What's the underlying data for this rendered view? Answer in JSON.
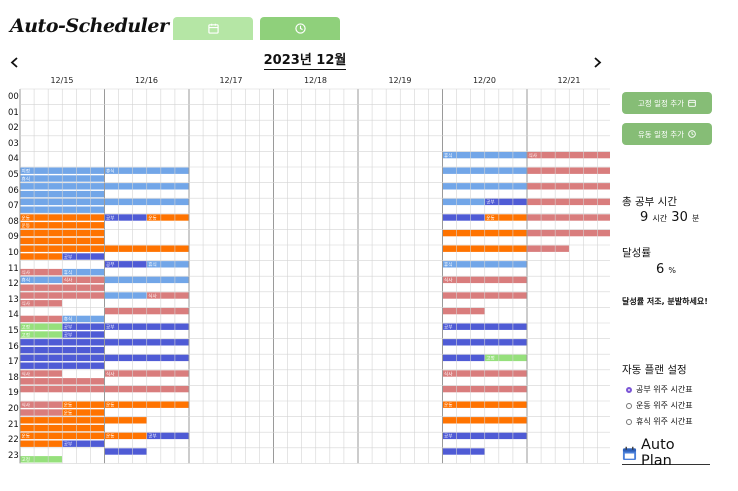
{
  "app": {
    "title": "Auto-Scheduler"
  },
  "view_tabs": [
    {
      "icon": "calendar-icon"
    },
    {
      "icon": "clock-icon"
    }
  ],
  "calendar": {
    "month_label": "2023년 12월",
    "days": [
      "12/15",
      "12/16",
      "12/17",
      "12/18",
      "12/19",
      "12/20",
      "12/21"
    ],
    "hours": [
      "00",
      "01",
      "02",
      "03",
      "04",
      "05",
      "06",
      "07",
      "08",
      "09",
      "10",
      "11",
      "12",
      "13",
      "14",
      "15",
      "16",
      "17",
      "18",
      "19",
      "20",
      "21",
      "22",
      "23"
    ],
    "colors": {
      "study": "#4f5bd5",
      "rest": "#72a6e8",
      "meal": "#d97d7d",
      "exercise": "#ff7300",
      "fixed": "#96e07c"
    },
    "events": [
      {
        "d": 0,
        "h": 5,
        "c": "rest",
        "r": 0,
        "s": 0,
        "e": 6,
        "t": "지정"
      },
      {
        "d": 0,
        "h": 5,
        "c": "rest",
        "r": 1,
        "s": 0,
        "e": 6,
        "t": "휴식"
      },
      {
        "d": 0,
        "h": 6,
        "c": "rest",
        "r": 0,
        "s": 0,
        "e": 6
      },
      {
        "d": 0,
        "h": 6,
        "c": "rest",
        "r": 1,
        "s": 0,
        "e": 6
      },
      {
        "d": 0,
        "h": 7,
        "c": "rest",
        "r": 0,
        "s": 0,
        "e": 6
      },
      {
        "d": 0,
        "h": 7,
        "c": "rest",
        "r": 1,
        "s": 0,
        "e": 6
      },
      {
        "d": 0,
        "h": 8,
        "c": "exercise",
        "r": 0,
        "s": 0,
        "e": 6,
        "t": "운동"
      },
      {
        "d": 0,
        "h": 8,
        "c": "exercise",
        "r": 1,
        "s": 0,
        "e": 6,
        "t": "운동"
      },
      {
        "d": 0,
        "h": 9,
        "c": "exercise",
        "r": 0,
        "s": 0,
        "e": 6
      },
      {
        "d": 0,
        "h": 9,
        "c": "exercise",
        "r": 1,
        "s": 0,
        "e": 6
      },
      {
        "d": 0,
        "h": 10,
        "c": "exercise",
        "r": 0,
        "s": 0,
        "e": 6
      },
      {
        "d": 0,
        "h": 10,
        "c": "study",
        "r": 1,
        "s": 3,
        "e": 6,
        "t": "공부"
      },
      {
        "d": 0,
        "h": 10,
        "c": "exercise",
        "r": 1,
        "s": 0,
        "e": 3
      },
      {
        "d": 0,
        "h": 11,
        "c": "meal",
        "r": 1,
        "s": 0,
        "e": 3,
        "t": "식사"
      },
      {
        "d": 0,
        "h": 11,
        "c": "rest",
        "r": 1,
        "s": 3,
        "e": 6,
        "t": "휴식"
      },
      {
        "d": 0,
        "h": 12,
        "c": "rest",
        "r": 0,
        "s": 0,
        "e": 3,
        "t": "휴식"
      },
      {
        "d": 0,
        "h": 12,
        "c": "meal",
        "r": 0,
        "s": 3,
        "e": 6,
        "t": "식사"
      },
      {
        "d": 0,
        "h": 12,
        "c": "meal",
        "r": 1,
        "s": 0,
        "e": 6
      },
      {
        "d": 0,
        "h": 13,
        "c": "meal",
        "r": 0,
        "s": 0,
        "e": 6
      },
      {
        "d": 0,
        "h": 13,
        "c": "meal",
        "r": 1,
        "s": 0,
        "e": 3,
        "t": "식사"
      },
      {
        "d": 0,
        "h": 14,
        "c": "meal",
        "r": 1,
        "s": 0,
        "e": 3
      },
      {
        "d": 0,
        "h": 14,
        "c": "rest",
        "r": 1,
        "s": 3,
        "e": 6,
        "t": "휴식"
      },
      {
        "d": 0,
        "h": 15,
        "c": "fixed",
        "r": 0,
        "s": 0,
        "e": 3,
        "t": "고정"
      },
      {
        "d": 0,
        "h": 15,
        "c": "study",
        "r": 0,
        "s": 3,
        "e": 6,
        "t": "공부"
      },
      {
        "d": 0,
        "h": 15,
        "c": "fixed",
        "r": 1,
        "s": 0,
        "e": 3,
        "t": "고정"
      },
      {
        "d": 0,
        "h": 15,
        "c": "study",
        "r": 1,
        "s": 3,
        "e": 6,
        "t": "공부"
      },
      {
        "d": 0,
        "h": 16,
        "c": "study",
        "r": 0,
        "s": 0,
        "e": 6
      },
      {
        "d": 0,
        "h": 16,
        "c": "study",
        "r": 1,
        "s": 0,
        "e": 6
      },
      {
        "d": 0,
        "h": 17,
        "c": "study",
        "r": 0,
        "s": 0,
        "e": 6
      },
      {
        "d": 0,
        "h": 17,
        "c": "study",
        "r": 1,
        "s": 0,
        "e": 6
      },
      {
        "d": 0,
        "h": 18,
        "c": "meal",
        "r": 0,
        "s": 0,
        "e": 3,
        "t": "식사"
      },
      {
        "d": 0,
        "h": 18,
        "c": "meal",
        "r": 1,
        "s": 0,
        "e": 6
      },
      {
        "d": 0,
        "h": 19,
        "c": "meal",
        "r": 0,
        "s": 0,
        "e": 6
      },
      {
        "d": 0,
        "h": 20,
        "c": "meal",
        "r": 0,
        "s": 0,
        "e": 3,
        "t": "식사"
      },
      {
        "d": 0,
        "h": 20,
        "c": "exercise",
        "r": 0,
        "s": 3,
        "e": 6,
        "t": "운동"
      },
      {
        "d": 0,
        "h": 20,
        "c": "meal",
        "r": 1,
        "s": 0,
        "e": 3
      },
      {
        "d": 0,
        "h": 20,
        "c": "exercise",
        "r": 1,
        "s": 3,
        "e": 6,
        "t": "운동"
      },
      {
        "d": 0,
        "h": 21,
        "c": "exercise",
        "r": 0,
        "s": 0,
        "e": 6
      },
      {
        "d": 0,
        "h": 21,
        "c": "exercise",
        "r": 1,
        "s": 0,
        "e": 6
      },
      {
        "d": 0,
        "h": 22,
        "c": "exercise",
        "r": 0,
        "s": 0,
        "e": 6,
        "t": "운동"
      },
      {
        "d": 0,
        "h": 22,
        "c": "study",
        "r": 1,
        "s": 3,
        "e": 6,
        "t": "공부"
      },
      {
        "d": 0,
        "h": 22,
        "c": "exercise",
        "r": 1,
        "s": 0,
        "e": 3
      },
      {
        "d": 0,
        "h": 23,
        "c": "fixed",
        "r": 1,
        "s": 0,
        "e": 3,
        "t": "고정"
      },
      {
        "d": 1,
        "h": 5,
        "c": "rest",
        "r": 0,
        "s": 0,
        "e": 6,
        "t": "휴식"
      },
      {
        "d": 1,
        "h": 6,
        "c": "rest",
        "r": 0,
        "s": 0,
        "e": 6
      },
      {
        "d": 1,
        "h": 7,
        "c": "rest",
        "r": 0,
        "s": 0,
        "e": 6
      },
      {
        "d": 1,
        "h": 8,
        "c": "study",
        "r": 0,
        "s": 0,
        "e": 3,
        "t": "공부"
      },
      {
        "d": 1,
        "h": 8,
        "c": "exercise",
        "r": 0,
        "s": 3,
        "e": 6,
        "t": "운동"
      },
      {
        "d": 1,
        "h": 10,
        "c": "exercise",
        "r": 0,
        "s": 0,
        "e": 6
      },
      {
        "d": 1,
        "h": 11,
        "c": "study",
        "r": 0,
        "s": 0,
        "e": 3,
        "t": "공부"
      },
      {
        "d": 1,
        "h": 11,
        "c": "rest",
        "r": 0,
        "s": 3,
        "e": 6,
        "t": "휴식"
      },
      {
        "d": 1,
        "h": 12,
        "c": "rest",
        "r": 0,
        "s": 0,
        "e": 6
      },
      {
        "d": 1,
        "h": 13,
        "c": "rest",
        "r": 0,
        "s": 0,
        "e": 3
      },
      {
        "d": 1,
        "h": 13,
        "c": "meal",
        "r": 0,
        "s": 3,
        "e": 6,
        "t": "식사"
      },
      {
        "d": 1,
        "h": 14,
        "c": "meal",
        "r": 0,
        "s": 0,
        "e": 6
      },
      {
        "d": 1,
        "h": 15,
        "c": "study",
        "r": 0,
        "s": 0,
        "e": 6,
        "t": "공부"
      },
      {
        "d": 1,
        "h": 16,
        "c": "study",
        "r": 0,
        "s": 0,
        "e": 6
      },
      {
        "d": 1,
        "h": 17,
        "c": "study",
        "r": 0,
        "s": 0,
        "e": 6
      },
      {
        "d": 1,
        "h": 18,
        "c": "meal",
        "r": 0,
        "s": 0,
        "e": 6,
        "t": "식사"
      },
      {
        "d": 1,
        "h": 19,
        "c": "meal",
        "r": 0,
        "s": 0,
        "e": 6
      },
      {
        "d": 1,
        "h": 20,
        "c": "exercise",
        "r": 0,
        "s": 0,
        "e": 6,
        "t": "운동"
      },
      {
        "d": 1,
        "h": 21,
        "c": "exercise",
        "r": 0,
        "s": 0,
        "e": 3
      },
      {
        "d": 1,
        "h": 22,
        "c": "exercise",
        "r": 0,
        "s": 0,
        "e": 3,
        "t": "운동"
      },
      {
        "d": 1,
        "h": 22,
        "c": "study",
        "r": 0,
        "s": 3,
        "e": 6,
        "t": "공부"
      },
      {
        "d": 1,
        "h": 23,
        "c": "study",
        "r": 0,
        "s": 0,
        "e": 3
      },
      {
        "d": 5,
        "h": 4,
        "c": "rest",
        "r": 0,
        "s": 0,
        "e": 6,
        "t": "휴식"
      },
      {
        "d": 5,
        "h": 5,
        "c": "rest",
        "r": 0,
        "s": 0,
        "e": 6
      },
      {
        "d": 5,
        "h": 6,
        "c": "rest",
        "r": 0,
        "s": 0,
        "e": 6
      },
      {
        "d": 5,
        "h": 7,
        "c": "rest",
        "r": 0,
        "s": 0,
        "e": 3
      },
      {
        "d": 5,
        "h": 7,
        "c": "study",
        "r": 0,
        "s": 3,
        "e": 6,
        "t": "공부"
      },
      {
        "d": 5,
        "h": 8,
        "c": "study",
        "r": 0,
        "s": 0,
        "e": 3
      },
      {
        "d": 5,
        "h": 8,
        "c": "exercise",
        "r": 0,
        "s": 3,
        "e": 6,
        "t": "운동"
      },
      {
        "d": 5,
        "h": 9,
        "c": "exercise",
        "r": 0,
        "s": 0,
        "e": 6
      },
      {
        "d": 5,
        "h": 10,
        "c": "exercise",
        "r": 0,
        "s": 0,
        "e": 6
      },
      {
        "d": 5,
        "h": 11,
        "c": "rest",
        "r": 0,
        "s": 0,
        "e": 6,
        "t": "휴식"
      },
      {
        "d": 5,
        "h": 12,
        "c": "meal",
        "r": 0,
        "s": 0,
        "e": 6,
        "t": "식사"
      },
      {
        "d": 5,
        "h": 13,
        "c": "meal",
        "r": 0,
        "s": 0,
        "e": 6
      },
      {
        "d": 5,
        "h": 14,
        "c": "meal",
        "r": 0,
        "s": 0,
        "e": 3
      },
      {
        "d": 5,
        "h": 15,
        "c": "study",
        "r": 0,
        "s": 0,
        "e": 6,
        "t": "공부"
      },
      {
        "d": 5,
        "h": 16,
        "c": "study",
        "r": 0,
        "s": 0,
        "e": 6
      },
      {
        "d": 5,
        "h": 17,
        "c": "study",
        "r": 0,
        "s": 0,
        "e": 3
      },
      {
        "d": 5,
        "h": 17,
        "c": "fixed",
        "r": 0,
        "s": 3,
        "e": 6,
        "t": "고정"
      },
      {
        "d": 5,
        "h": 18,
        "c": "meal",
        "r": 0,
        "s": 0,
        "e": 6,
        "t": "식사"
      },
      {
        "d": 5,
        "h": 19,
        "c": "meal",
        "r": 0,
        "s": 0,
        "e": 6
      },
      {
        "d": 5,
        "h": 20,
        "c": "exercise",
        "r": 0,
        "s": 0,
        "e": 6,
        "t": "운동"
      },
      {
        "d": 5,
        "h": 21,
        "c": "exercise",
        "r": 0,
        "s": 0,
        "e": 6
      },
      {
        "d": 5,
        "h": 22,
        "c": "study",
        "r": 0,
        "s": 0,
        "e": 6,
        "t": "공부"
      },
      {
        "d": 5,
        "h": 23,
        "c": "study",
        "r": 0,
        "s": 0,
        "e": 3
      },
      {
        "d": 6,
        "h": 4,
        "c": "meal",
        "r": 0,
        "s": 0,
        "e": 6,
        "t": "식사"
      },
      {
        "d": 6,
        "h": 5,
        "c": "meal",
        "r": 0,
        "s": 0,
        "e": 6
      },
      {
        "d": 6,
        "h": 6,
        "c": "meal",
        "r": 0,
        "s": 0,
        "e": 6
      },
      {
        "d": 6,
        "h": 7,
        "c": "meal",
        "r": 0,
        "s": 0,
        "e": 6
      },
      {
        "d": 6,
        "h": 8,
        "c": "meal",
        "r": 0,
        "s": 0,
        "e": 6
      },
      {
        "d": 6,
        "h": 9,
        "c": "meal",
        "r": 0,
        "s": 0,
        "e": 6
      },
      {
        "d": 6,
        "h": 10,
        "c": "meal",
        "r": 0,
        "s": 0,
        "e": 3
      }
    ]
  },
  "actions": {
    "add_fixed": {
      "label": "고정 일정 추가",
      "icon": "calendar-icon"
    },
    "add_flexible": {
      "label": "유동 일정 추가",
      "icon": "clock-icon"
    }
  },
  "stats": {
    "study_time_title": "총 공부 시간",
    "hours_value": "9",
    "hours_unit": "시간",
    "minutes_value": "30",
    "minutes_unit": "분",
    "achievement_title": "달성률",
    "achievement_value": "6",
    "achievement_unit": "%",
    "message": "달성률 저조, 분발하세요!"
  },
  "auto_plan": {
    "title": "자동 플랜 설정",
    "options": [
      {
        "label": "공부 위주 시간표",
        "selected": true
      },
      {
        "label": "운동 위주 시간표",
        "selected": false
      },
      {
        "label": "휴식 위주 시간표",
        "selected": false
      }
    ],
    "button_label": "Auto Plan",
    "button_icon": "calendar-icon"
  }
}
